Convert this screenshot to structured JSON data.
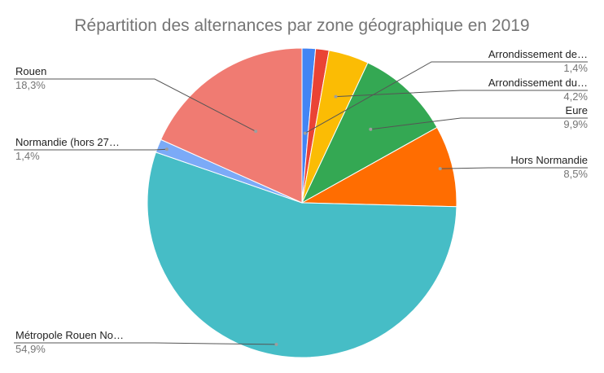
{
  "chart_data": {
    "type": "pie",
    "title": "Répartition des alternances par zone géographique en 2019",
    "slices": [
      {
        "label": "Arrondissement de…",
        "display_value": "1,4%",
        "value": 1.4,
        "color": "#4285f4"
      },
      {
        "label": "",
        "display_value": "",
        "value": 1.4,
        "color": "#ea4335"
      },
      {
        "label": "Arrondissement du…",
        "display_value": "4,2%",
        "value": 4.2,
        "color": "#fbbc04"
      },
      {
        "label": "Eure",
        "display_value": "9,9%",
        "value": 9.9,
        "color": "#34a853"
      },
      {
        "label": "Hors Normandie",
        "display_value": "8,5%",
        "value": 8.5,
        "color": "#ff6d01"
      },
      {
        "label": "Métropole Rouen No…",
        "display_value": "54,9%",
        "value": 54.9,
        "color": "#46bdc6"
      },
      {
        "label": "Normandie (hors 27…",
        "display_value": "1,4%",
        "value": 1.4,
        "color": "#7baaf7"
      },
      {
        "label": "Rouen",
        "display_value": "18,3%",
        "value": 18.3,
        "color": "#f07b72"
      }
    ]
  }
}
